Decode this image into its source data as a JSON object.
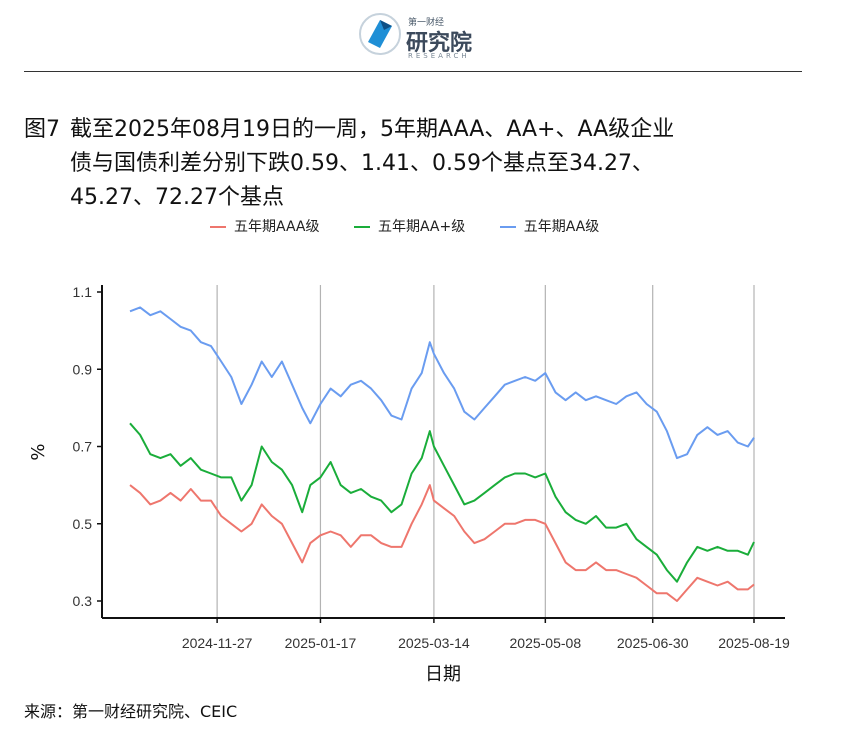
{
  "header": {
    "logo_small": "第一财经",
    "logo_main": "研究院",
    "logo_sub": "RESEARCH"
  },
  "title": {
    "label": "图7",
    "line1": "截至2025年08月19日的一周，5年期AAA、AA+、AA级企业",
    "line2": "债与国债利差分别下跌0.59、1.41、0.59个基点至34.27、",
    "line3": "45.27、72.27个基点"
  },
  "source": "来源：第一财经研究院、CEIC",
  "colors": {
    "aaa": "#ee766d",
    "aaplus": "#1aad3a",
    "aa": "#6a9cf0"
  },
  "chart_data": {
    "type": "line",
    "title": "",
    "xlabel": "日期",
    "ylabel": "%",
    "x_range": [
      "2024-10-15",
      "2025-08-19"
    ],
    "ylim": [
      0.27,
      1.12
    ],
    "y_ticks": [
      1.1,
      0.9,
      0.7,
      0.5,
      0.3
    ],
    "x_ticks": [
      "2024-11-27",
      "2025-01-17",
      "2025-03-14",
      "2025-05-08",
      "2025-06-30",
      "2025-08-19"
    ],
    "grid": "vertical at x ticks",
    "legend": "top",
    "series": [
      {
        "name": "五年期AAA级",
        "color": "#ee766d",
        "points": [
          [
            "2024-10-15",
            0.6
          ],
          [
            "2024-10-20",
            0.58
          ],
          [
            "2024-10-25",
            0.55
          ],
          [
            "2024-10-30",
            0.56
          ],
          [
            "2024-11-04",
            0.58
          ],
          [
            "2024-11-09",
            0.56
          ],
          [
            "2024-11-14",
            0.59
          ],
          [
            "2024-11-19",
            0.56
          ],
          [
            "2024-11-24",
            0.56
          ],
          [
            "2024-11-29",
            0.52
          ],
          [
            "2024-12-04",
            0.5
          ],
          [
            "2024-12-09",
            0.48
          ],
          [
            "2024-12-14",
            0.5
          ],
          [
            "2024-12-19",
            0.55
          ],
          [
            "2024-12-24",
            0.52
          ],
          [
            "2024-12-29",
            0.5
          ],
          [
            "2025-01-03",
            0.45
          ],
          [
            "2025-01-08",
            0.4
          ],
          [
            "2025-01-12",
            0.45
          ],
          [
            "2025-01-17",
            0.47
          ],
          [
            "2025-01-22",
            0.48
          ],
          [
            "2025-01-27",
            0.47
          ],
          [
            "2025-02-01",
            0.44
          ],
          [
            "2025-02-06",
            0.47
          ],
          [
            "2025-02-11",
            0.47
          ],
          [
            "2025-02-16",
            0.45
          ],
          [
            "2025-02-21",
            0.44
          ],
          [
            "2025-02-26",
            0.44
          ],
          [
            "2025-03-03",
            0.5
          ],
          [
            "2025-03-08",
            0.55
          ],
          [
            "2025-03-12",
            0.6
          ],
          [
            "2025-03-14",
            0.56
          ],
          [
            "2025-03-19",
            0.54
          ],
          [
            "2025-03-24",
            0.52
          ],
          [
            "2025-03-29",
            0.48
          ],
          [
            "2025-04-03",
            0.45
          ],
          [
            "2025-04-08",
            0.46
          ],
          [
            "2025-04-13",
            0.48
          ],
          [
            "2025-04-18",
            0.5
          ],
          [
            "2025-04-23",
            0.5
          ],
          [
            "2025-04-28",
            0.51
          ],
          [
            "2025-05-03",
            0.51
          ],
          [
            "2025-05-08",
            0.5
          ],
          [
            "2025-05-13",
            0.45
          ],
          [
            "2025-05-18",
            0.4
          ],
          [
            "2025-05-23",
            0.38
          ],
          [
            "2025-05-28",
            0.38
          ],
          [
            "2025-06-02",
            0.4
          ],
          [
            "2025-06-07",
            0.38
          ],
          [
            "2025-06-12",
            0.38
          ],
          [
            "2025-06-17",
            0.37
          ],
          [
            "2025-06-22",
            0.36
          ],
          [
            "2025-06-27",
            0.34
          ],
          [
            "2025-07-02",
            0.32
          ],
          [
            "2025-07-07",
            0.32
          ],
          [
            "2025-07-12",
            0.3
          ],
          [
            "2025-07-17",
            0.33
          ],
          [
            "2025-07-22",
            0.36
          ],
          [
            "2025-07-27",
            0.35
          ],
          [
            "2025-08-01",
            0.34
          ],
          [
            "2025-08-06",
            0.35
          ],
          [
            "2025-08-11",
            0.33
          ],
          [
            "2025-08-16",
            0.33
          ],
          [
            "2025-08-19",
            0.3427
          ]
        ]
      },
      {
        "name": "五年期AA+级",
        "color": "#1aad3a",
        "points": [
          [
            "2024-10-15",
            0.76
          ],
          [
            "2024-10-20",
            0.73
          ],
          [
            "2024-10-25",
            0.68
          ],
          [
            "2024-10-30",
            0.67
          ],
          [
            "2024-11-04",
            0.68
          ],
          [
            "2024-11-09",
            0.65
          ],
          [
            "2024-11-14",
            0.67
          ],
          [
            "2024-11-19",
            0.64
          ],
          [
            "2024-11-24",
            0.63
          ],
          [
            "2024-11-29",
            0.62
          ],
          [
            "2024-12-04",
            0.62
          ],
          [
            "2024-12-09",
            0.56
          ],
          [
            "2024-12-14",
            0.6
          ],
          [
            "2024-12-19",
            0.7
          ],
          [
            "2024-12-24",
            0.66
          ],
          [
            "2024-12-29",
            0.64
          ],
          [
            "2025-01-03",
            0.6
          ],
          [
            "2025-01-08",
            0.53
          ],
          [
            "2025-01-12",
            0.6
          ],
          [
            "2025-01-17",
            0.62
          ],
          [
            "2025-01-22",
            0.66
          ],
          [
            "2025-01-27",
            0.6
          ],
          [
            "2025-02-01",
            0.58
          ],
          [
            "2025-02-06",
            0.59
          ],
          [
            "2025-02-11",
            0.57
          ],
          [
            "2025-02-16",
            0.56
          ],
          [
            "2025-02-21",
            0.53
          ],
          [
            "2025-02-26",
            0.55
          ],
          [
            "2025-03-03",
            0.63
          ],
          [
            "2025-03-08",
            0.67
          ],
          [
            "2025-03-12",
            0.74
          ],
          [
            "2025-03-14",
            0.7
          ],
          [
            "2025-03-19",
            0.65
          ],
          [
            "2025-03-24",
            0.6
          ],
          [
            "2025-03-29",
            0.55
          ],
          [
            "2025-04-03",
            0.56
          ],
          [
            "2025-04-08",
            0.58
          ],
          [
            "2025-04-13",
            0.6
          ],
          [
            "2025-04-18",
            0.62
          ],
          [
            "2025-04-23",
            0.63
          ],
          [
            "2025-04-28",
            0.63
          ],
          [
            "2025-05-03",
            0.62
          ],
          [
            "2025-05-08",
            0.63
          ],
          [
            "2025-05-13",
            0.57
          ],
          [
            "2025-05-18",
            0.53
          ],
          [
            "2025-05-23",
            0.51
          ],
          [
            "2025-05-28",
            0.5
          ],
          [
            "2025-06-02",
            0.52
          ],
          [
            "2025-06-07",
            0.49
          ],
          [
            "2025-06-12",
            0.49
          ],
          [
            "2025-06-17",
            0.5
          ],
          [
            "2025-06-22",
            0.46
          ],
          [
            "2025-06-27",
            0.44
          ],
          [
            "2025-07-02",
            0.42
          ],
          [
            "2025-07-07",
            0.38
          ],
          [
            "2025-07-12",
            0.35
          ],
          [
            "2025-07-17",
            0.4
          ],
          [
            "2025-07-22",
            0.44
          ],
          [
            "2025-07-27",
            0.43
          ],
          [
            "2025-08-01",
            0.44
          ],
          [
            "2025-08-06",
            0.43
          ],
          [
            "2025-08-11",
            0.43
          ],
          [
            "2025-08-16",
            0.42
          ],
          [
            "2025-08-19",
            0.4527
          ]
        ]
      },
      {
        "name": "五年期AA级",
        "color": "#6a9cf0",
        "points": [
          [
            "2024-10-15",
            1.05
          ],
          [
            "2024-10-20",
            1.06
          ],
          [
            "2024-10-25",
            1.04
          ],
          [
            "2024-10-30",
            1.05
          ],
          [
            "2024-11-04",
            1.03
          ],
          [
            "2024-11-09",
            1.01
          ],
          [
            "2024-11-14",
            1.0
          ],
          [
            "2024-11-19",
            0.97
          ],
          [
            "2024-11-24",
            0.96
          ],
          [
            "2024-11-29",
            0.92
          ],
          [
            "2024-12-04",
            0.88
          ],
          [
            "2024-12-09",
            0.81
          ],
          [
            "2024-12-14",
            0.86
          ],
          [
            "2024-12-19",
            0.92
          ],
          [
            "2024-12-24",
            0.88
          ],
          [
            "2024-12-29",
            0.92
          ],
          [
            "2025-01-03",
            0.86
          ],
          [
            "2025-01-08",
            0.8
          ],
          [
            "2025-01-12",
            0.76
          ],
          [
            "2025-01-17",
            0.81
          ],
          [
            "2025-01-22",
            0.85
          ],
          [
            "2025-01-27",
            0.83
          ],
          [
            "2025-02-01",
            0.86
          ],
          [
            "2025-02-06",
            0.87
          ],
          [
            "2025-02-11",
            0.85
          ],
          [
            "2025-02-16",
            0.82
          ],
          [
            "2025-02-21",
            0.78
          ],
          [
            "2025-02-26",
            0.77
          ],
          [
            "2025-03-03",
            0.85
          ],
          [
            "2025-03-08",
            0.89
          ],
          [
            "2025-03-12",
            0.97
          ],
          [
            "2025-03-14",
            0.94
          ],
          [
            "2025-03-19",
            0.89
          ],
          [
            "2025-03-24",
            0.85
          ],
          [
            "2025-03-29",
            0.79
          ],
          [
            "2025-04-03",
            0.77
          ],
          [
            "2025-04-08",
            0.8
          ],
          [
            "2025-04-13",
            0.83
          ],
          [
            "2025-04-18",
            0.86
          ],
          [
            "2025-04-23",
            0.87
          ],
          [
            "2025-04-28",
            0.88
          ],
          [
            "2025-05-03",
            0.87
          ],
          [
            "2025-05-08",
            0.89
          ],
          [
            "2025-05-13",
            0.84
          ],
          [
            "2025-05-18",
            0.82
          ],
          [
            "2025-05-23",
            0.84
          ],
          [
            "2025-05-28",
            0.82
          ],
          [
            "2025-06-02",
            0.83
          ],
          [
            "2025-06-07",
            0.82
          ],
          [
            "2025-06-12",
            0.81
          ],
          [
            "2025-06-17",
            0.83
          ],
          [
            "2025-06-22",
            0.84
          ],
          [
            "2025-06-27",
            0.81
          ],
          [
            "2025-07-02",
            0.79
          ],
          [
            "2025-07-07",
            0.74
          ],
          [
            "2025-07-12",
            0.67
          ],
          [
            "2025-07-17",
            0.68
          ],
          [
            "2025-07-22",
            0.73
          ],
          [
            "2025-07-27",
            0.75
          ],
          [
            "2025-08-01",
            0.73
          ],
          [
            "2025-08-06",
            0.74
          ],
          [
            "2025-08-11",
            0.71
          ],
          [
            "2025-08-16",
            0.7
          ],
          [
            "2025-08-19",
            0.7227
          ]
        ]
      }
    ]
  }
}
